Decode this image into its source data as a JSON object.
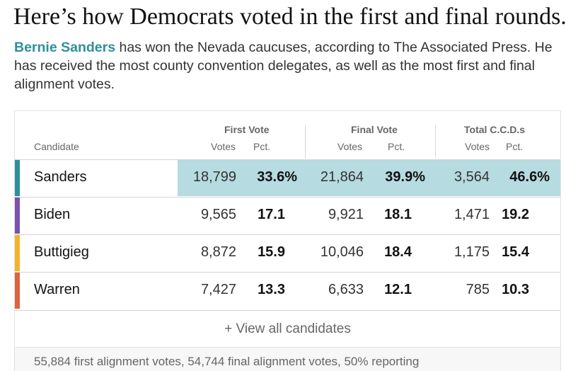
{
  "headline": "Here’s how Democrats voted in the first and final rounds.",
  "summary": {
    "leader_name": "Bernie Sanders",
    "text": " has won the Nevada caucuses, according to The Associated Press. He has received the most county convention delegates, as well as the most first and final alignment votes."
  },
  "table": {
    "header": {
      "candidate_label": "Candidate",
      "groups": [
        {
          "title": "First Vote",
          "votes_label": "Votes",
          "pct_label": "Pct."
        },
        {
          "title": "Final Vote",
          "votes_label": "Votes",
          "pct_label": "Pct."
        },
        {
          "title": "Total C.C.D.s",
          "votes_label": "Votes",
          "pct_label": "Pct."
        }
      ]
    },
    "rows": [
      {
        "name": "Sanders",
        "color": "#2e8f9c",
        "winner": true,
        "first_votes": "18,799",
        "first_pct": "33.6%",
        "final_votes": "21,864",
        "final_pct": "39.9%",
        "ccd_votes": "3,564",
        "ccd_pct": "46.6%"
      },
      {
        "name": "Biden",
        "color": "#7b52ae",
        "winner": false,
        "first_votes": "9,565",
        "first_pct": "17.1",
        "final_votes": "9,921",
        "final_pct": "18.1",
        "ccd_votes": "1,471",
        "ccd_pct": "19.2"
      },
      {
        "name": "Buttigieg",
        "color": "#f2b32c",
        "winner": false,
        "first_votes": "8,872",
        "first_pct": "15.9",
        "final_votes": "10,046",
        "final_pct": "18.4",
        "ccd_votes": "1,175",
        "ccd_pct": "15.4"
      },
      {
        "name": "Warren",
        "color": "#d9653f",
        "winner": false,
        "first_votes": "7,427",
        "first_pct": "13.3",
        "final_votes": "6,633",
        "final_pct": "12.1",
        "ccd_votes": "785",
        "ccd_pct": "10.3"
      }
    ],
    "view_all_label": "+ View all candidates",
    "footer": "55,884 first alignment votes, 54,744 final alignment votes, 50% reporting"
  },
  "colors": {
    "highlight": "#b6dbe0",
    "accent": "#2e8f9c"
  }
}
